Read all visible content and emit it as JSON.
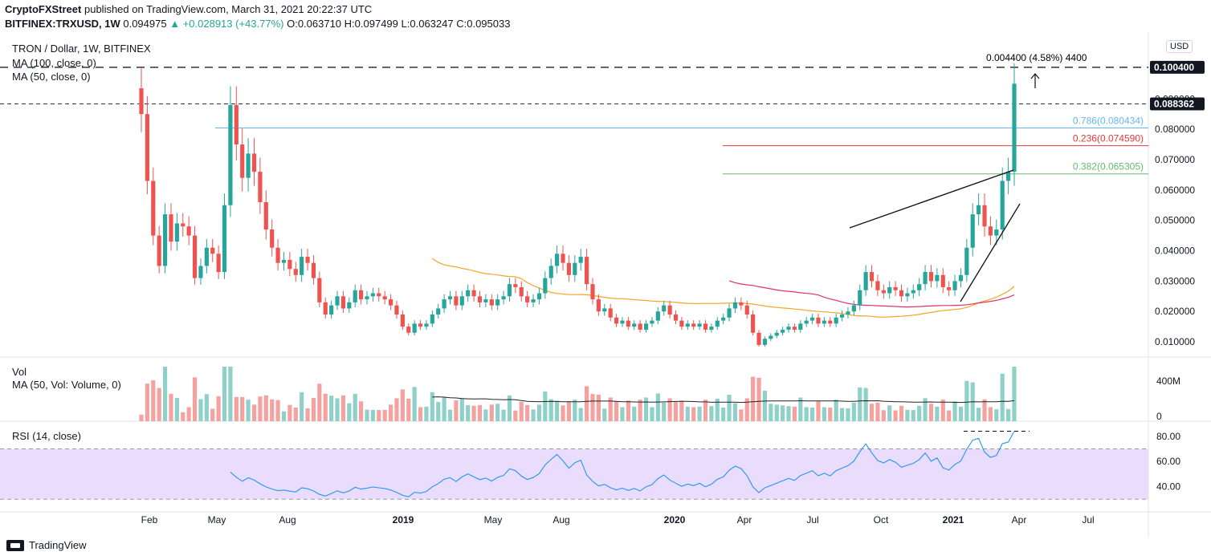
{
  "header": {
    "publisher": "CryptoFXStreet",
    "published_text": "published on TradingView.com, March 31, 2021 20:22:37 UTC",
    "symbol_line_prefix": "BITFINEX:TRXUSD, 1W",
    "last": "0.094975",
    "change": "▲ +0.028913 (+43.77%)",
    "open": "O:0.063710",
    "high": "H:0.097499",
    "low": "L:0.063247",
    "close": "C:0.095033"
  },
  "legend": {
    "title": "TRON / Dollar, 1W, BITFINEX",
    "ma100": "MA (100, close, 0)",
    "ma50": "MA (50, close, 0)",
    "vol": "Vol",
    "vol_ma": "MA (50, Vol: Volume, 0)",
    "rsi": "RSI (14, close)"
  },
  "currency": "USD",
  "annotation": "0.004400 (4.58%) 4400",
  "footer": {
    "brand": "TradingView"
  },
  "colors": {
    "up": "#26a69a",
    "down": "#ef5350",
    "up_vol": "#8fd1c9",
    "down_vol": "#f3a2a0",
    "ma50": "#f7a425",
    "ma100": "#e3306b",
    "fib786": "#64b5f6",
    "fib236": "#e53935",
    "fib382": "#66bb6a",
    "rsi_line": "#2196f3",
    "rsi_band": "#e9dcfc"
  },
  "chart_data": {
    "type": "candlestick",
    "title": "TRON / Dollar, 1W, BITFINEX",
    "x_ticks": [
      "Feb",
      "May",
      "Aug",
      "2019",
      "May",
      "Aug",
      "2020",
      "Apr",
      "Jul",
      "Oct",
      "2021",
      "Apr",
      "Jul"
    ],
    "y_ticks": [
      "0.010000",
      "0.020000",
      "0.030000",
      "0.040000",
      "0.050000",
      "0.060000",
      "0.070000",
      "0.080000",
      "0.090000"
    ],
    "ylim": [
      0.005,
      0.112
    ],
    "price_labels": [
      {
        "text": "0.100400",
        "value": 0.1004,
        "kind": "resistance"
      },
      {
        "text": "0.088362",
        "value": 0.088362,
        "kind": "level"
      }
    ],
    "fib_levels": [
      {
        "text": "0.786(0.080434)",
        "value": 0.080434,
        "color_key": "fib786"
      },
      {
        "text": "0.236(0.074590)",
        "value": 0.07459,
        "color_key": "fib236"
      },
      {
        "text": "0.382(0.065305)",
        "value": 0.065305,
        "color_key": "fib382"
      }
    ],
    "close": [
      0.085,
      0.063,
      0.045,
      0.035,
      0.052,
      0.043,
      0.049,
      0.048,
      0.045,
      0.031,
      0.035,
      0.041,
      0.039,
      0.033,
      0.055,
      0.088,
      0.075,
      0.064,
      0.072,
      0.066,
      0.056,
      0.047,
      0.041,
      0.036,
      0.037,
      0.034,
      0.032,
      0.038,
      0.036,
      0.031,
      0.023,
      0.019,
      0.022,
      0.025,
      0.021,
      0.023,
      0.027,
      0.024,
      0.025,
      0.026,
      0.025,
      0.024,
      0.022,
      0.019,
      0.015,
      0.013,
      0.016,
      0.015,
      0.016,
      0.019,
      0.021,
      0.024,
      0.025,
      0.022,
      0.025,
      0.027,
      0.025,
      0.023,
      0.024,
      0.022,
      0.024,
      0.025,
      0.029,
      0.028,
      0.025,
      0.023,
      0.024,
      0.026,
      0.031,
      0.035,
      0.039,
      0.036,
      0.032,
      0.036,
      0.038,
      0.029,
      0.024,
      0.02,
      0.021,
      0.018,
      0.016,
      0.017,
      0.015,
      0.016,
      0.014,
      0.016,
      0.017,
      0.02,
      0.022,
      0.019,
      0.017,
      0.015,
      0.016,
      0.015,
      0.016,
      0.014,
      0.015,
      0.017,
      0.018,
      0.021,
      0.023,
      0.022,
      0.019,
      0.013,
      0.009,
      0.011,
      0.012,
      0.013,
      0.014,
      0.015,
      0.014,
      0.016,
      0.017,
      0.018,
      0.016,
      0.017,
      0.016,
      0.018,
      0.019,
      0.02,
      0.022,
      0.027,
      0.033,
      0.03,
      0.027,
      0.026,
      0.028,
      0.027,
      0.025,
      0.026,
      0.027,
      0.029,
      0.033,
      0.03,
      0.032,
      0.028,
      0.027,
      0.03,
      0.032,
      0.041,
      0.052,
      0.055,
      0.048,
      0.045,
      0.047,
      0.063,
      0.066,
      0.095
    ],
    "rsi": {
      "upper": 70,
      "lower": 30,
      "ticks": [
        "80.00",
        "60.00",
        "40.00"
      ]
    },
    "volume": {
      "ticks": [
        "400M",
        "0"
      ]
    }
  }
}
